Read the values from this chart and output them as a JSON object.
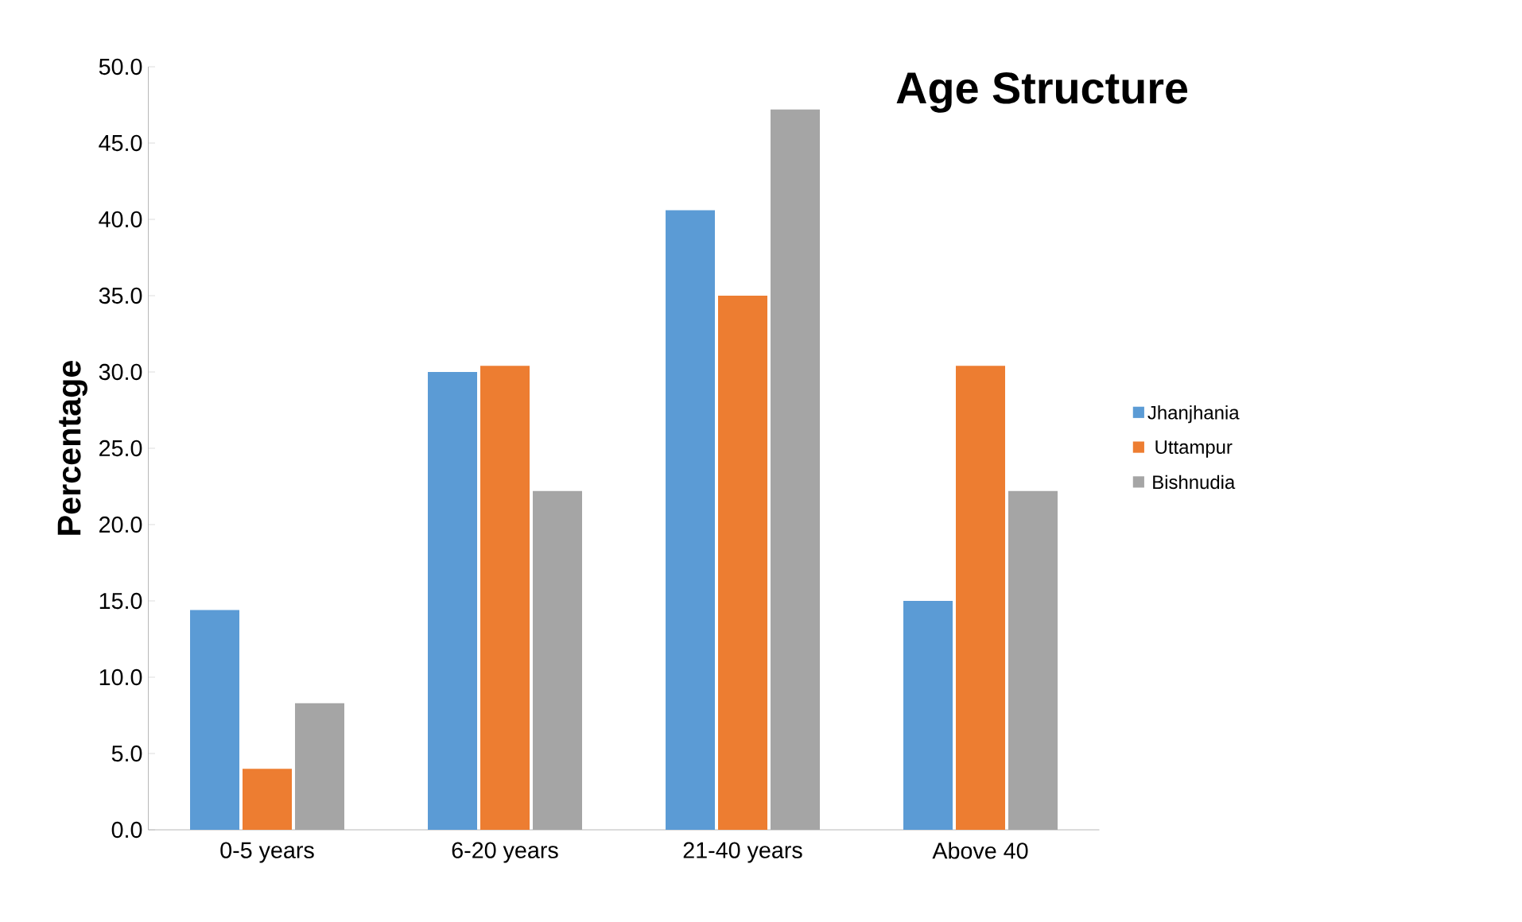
{
  "chart_data": {
    "type": "bar",
    "title": "Age Structure",
    "ylabel": "Percentage",
    "categories": [
      "0-5 years",
      "6-20  years",
      "21-40 years",
      "Above 40"
    ],
    "series": [
      {
        "name": "Jhanjhania",
        "color": "#5b9bd5",
        "values": [
          14.4,
          30.0,
          40.6,
          15.0
        ]
      },
      {
        "name": "Uttampur",
        "color": "#ed7d31",
        "values": [
          4.0,
          30.4,
          35.0,
          30.4
        ]
      },
      {
        "name": "Bishnudia",
        "color": "#a5a5a5",
        "values": [
          8.3,
          22.2,
          47.2,
          22.2
        ]
      }
    ],
    "ylim": [
      0,
      50
    ],
    "yticks": [
      {
        "value": 0,
        "label": "0.0"
      },
      {
        "value": 5,
        "label": "5.0"
      },
      {
        "value": 10,
        "label": "10.0"
      },
      {
        "value": 15,
        "label": "15.0"
      },
      {
        "value": 20,
        "label": "20.0"
      },
      {
        "value": 25,
        "label": "25.0"
      },
      {
        "value": 30,
        "label": "30.0"
      },
      {
        "value": 35,
        "label": "35.0"
      },
      {
        "value": 40,
        "label": "40.0"
      },
      {
        "value": 45,
        "label": "45.0"
      },
      {
        "value": 50,
        "label": "50.0"
      }
    ],
    "grid": false,
    "legend": "right"
  }
}
